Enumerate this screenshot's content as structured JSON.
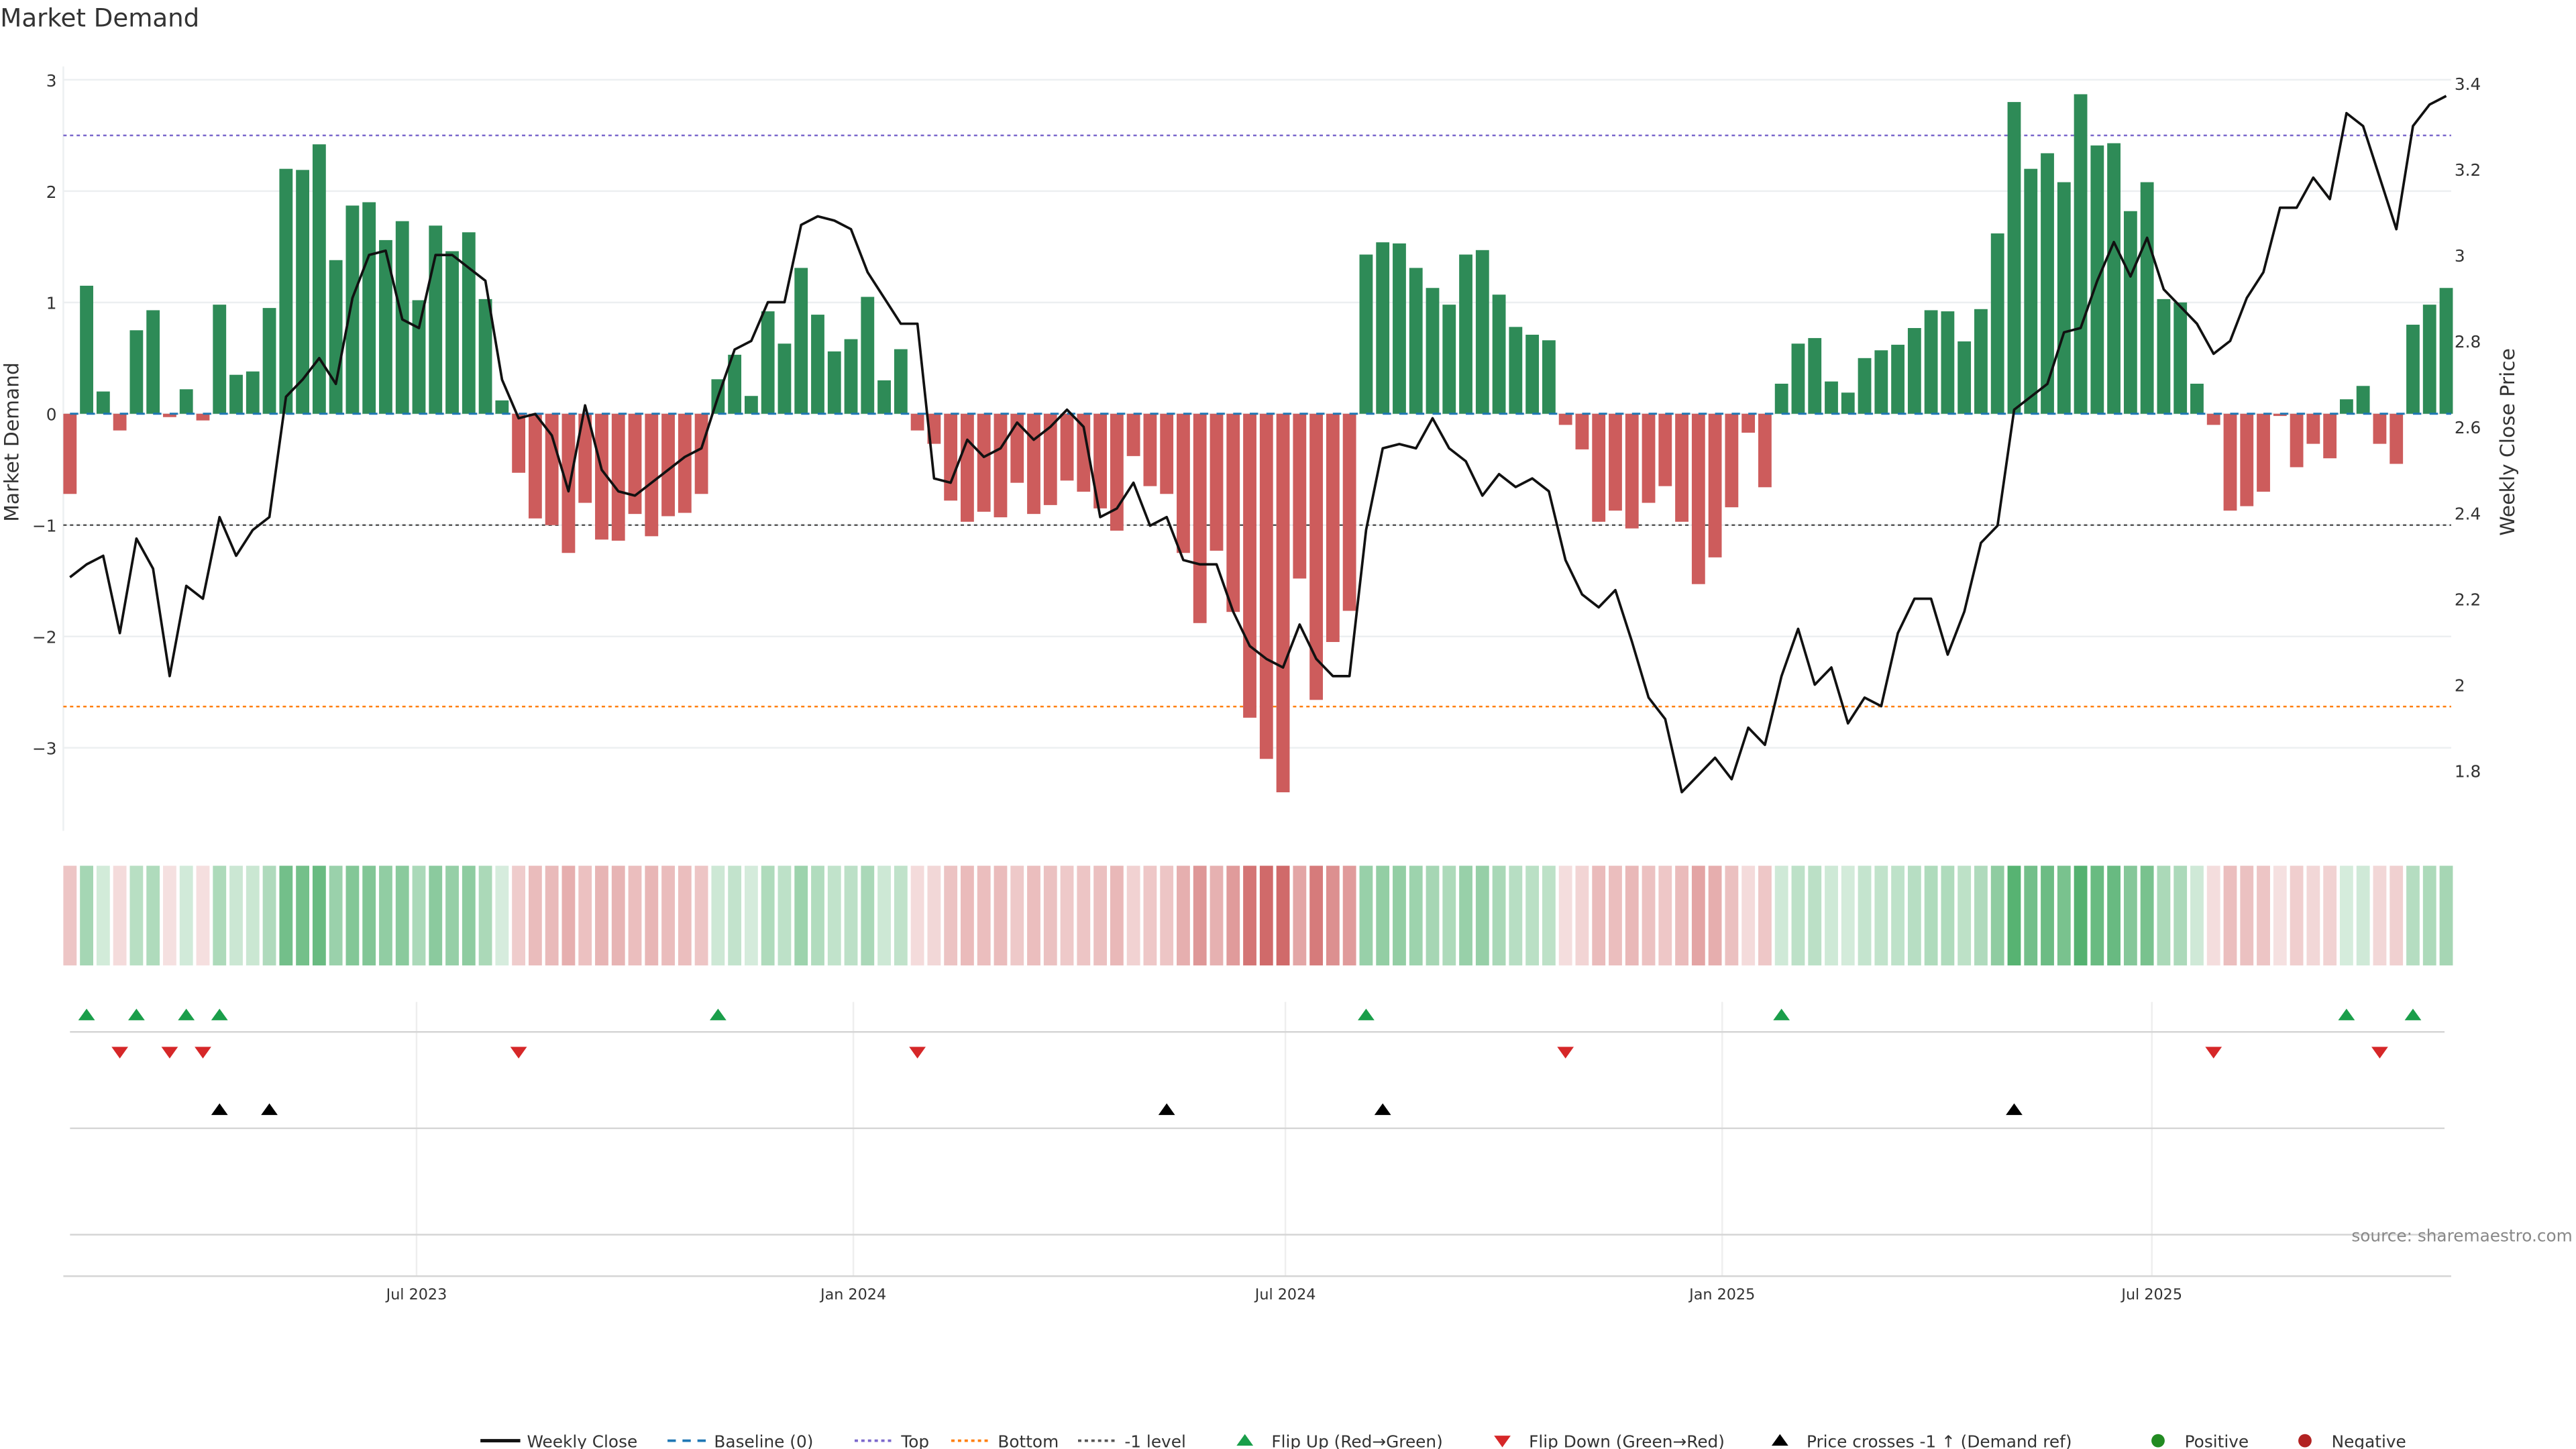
{
  "title": "Market Demand",
  "source": "source: sharemaestro.com",
  "colors": {
    "positive": "#2e8b57",
    "negative": "#cd5c5c",
    "line": "#111111",
    "baseline": "#1f77b4",
    "top": "#7b68cc",
    "bottom": "#ff7f0e",
    "minus1": "#555555",
    "flip_up": "#1a9e4a",
    "flip_down": "#d62728",
    "cross": "#000000"
  },
  "chart_data": {
    "type": "bar+line",
    "title": "Market Demand",
    "ylabel": "Market Demand",
    "y2label": "Weekly Close Price",
    "ylim": [
      -3.75,
      3.15
    ],
    "y2lim": [
      1.66,
      3.43
    ],
    "yticks": [
      "3",
      "2",
      "1",
      "0",
      "−1",
      "−2",
      "−3"
    ],
    "ytick_values": [
      3,
      2,
      1,
      0,
      -1,
      -2,
      -3
    ],
    "y2ticks": [
      "3.4",
      "3.2",
      "3",
      "2.8",
      "2.6",
      "2.4",
      "2.2",
      "2",
      "1.8"
    ],
    "y2tick_values": [
      3.4,
      3.2,
      3.0,
      2.8,
      2.6,
      2.4,
      2.2,
      2.0,
      1.8
    ],
    "xticks": [
      {
        "label": "Jul 2023",
        "date": "2023-07-01"
      },
      {
        "label": "Jan 2024",
        "date": "2024-01-01"
      },
      {
        "label": "Jul 2024",
        "date": "2024-07-01"
      },
      {
        "label": "Jan 2025",
        "date": "2025-01-01"
      },
      {
        "label": "Jul 2025",
        "date": "2025-07-01"
      }
    ],
    "start_date": "2023-02-05",
    "frequency": "weekly",
    "levels": {
      "top": 2.5,
      "bottom": -2.63,
      "minus1": -1,
      "baseline": 0
    },
    "demand": [
      -0.72,
      1.15,
      0.2,
      -0.15,
      0.75,
      0.93,
      -0.03,
      0.22,
      -0.06,
      0.98,
      0.35,
      0.38,
      0.95,
      2.2,
      2.19,
      2.42,
      1.38,
      1.87,
      1.9,
      1.56,
      1.73,
      1.02,
      1.69,
      1.46,
      1.63,
      1.03,
      0.12,
      -0.53,
      -0.94,
      -1.0,
      -1.25,
      -0.8,
      -1.13,
      -1.14,
      -0.9,
      -1.1,
      -0.92,
      -0.89,
      -0.72,
      0.31,
      0.53,
      0.16,
      0.92,
      0.63,
      1.31,
      0.89,
      0.56,
      0.67,
      1.05,
      0.3,
      0.58,
      -0.15,
      -0.27,
      -0.78,
      -0.97,
      -0.88,
      -0.93,
      -0.62,
      -0.9,
      -0.82,
      -0.6,
      -0.7,
      -0.85,
      -1.05,
      -0.38,
      -0.65,
      -0.72,
      -1.25,
      -1.88,
      -1.23,
      -1.78,
      -2.73,
      -3.1,
      -3.4,
      -1.48,
      -2.57,
      -2.05,
      -1.77,
      1.43,
      1.54,
      1.53,
      1.31,
      1.13,
      0.98,
      1.43,
      1.47,
      1.07,
      0.78,
      0.71,
      0.66,
      -0.1,
      -0.32,
      -0.97,
      -0.87,
      -1.03,
      -0.8,
      -0.65,
      -0.97,
      -1.53,
      -1.29,
      -0.84,
      -0.17,
      -0.66,
      0.27,
      0.63,
      0.68,
      0.29,
      0.19,
      0.5,
      0.57,
      0.62,
      0.77,
      0.93,
      0.92,
      0.65,
      0.94,
      1.62,
      2.8,
      2.2,
      2.34,
      2.08,
      2.87,
      2.41,
      2.43,
      1.82,
      2.08,
      1.03,
      1.0,
      0.27,
      -0.1,
      -0.87,
      -0.83,
      -0.7,
      -0.02,
      -0.48,
      -0.27,
      -0.4,
      0.13,
      0.25,
      -0.27,
      -0.45,
      0.8,
      0.98,
      1.13
    ],
    "close": [
      2.25,
      2.28,
      2.3,
      2.12,
      2.34,
      2.27,
      2.02,
      2.23,
      2.2,
      2.39,
      2.3,
      2.36,
      2.39,
      2.67,
      2.71,
      2.76,
      2.7,
      2.9,
      3.0,
      3.01,
      2.85,
      2.83,
      3.0,
      3.0,
      2.97,
      2.94,
      2.71,
      2.62,
      2.63,
      2.58,
      2.45,
      2.65,
      2.5,
      2.45,
      2.44,
      2.47,
      2.5,
      2.53,
      2.55,
      2.67,
      2.78,
      2.8,
      2.89,
      2.89,
      3.07,
      3.09,
      3.08,
      3.06,
      2.96,
      2.9,
      2.84,
      2.84,
      2.48,
      2.47,
      2.57,
      2.53,
      2.55,
      2.61,
      2.57,
      2.6,
      2.64,
      2.6,
      2.39,
      2.41,
      2.47,
      2.37,
      2.39,
      2.29,
      2.28,
      2.28,
      2.17,
      2.09,
      2.06,
      2.04,
      2.14,
      2.06,
      2.02,
      2.02,
      2.36,
      2.55,
      2.56,
      2.55,
      2.62,
      2.55,
      2.52,
      2.44,
      2.49,
      2.46,
      2.48,
      2.45,
      2.29,
      2.21,
      2.18,
      2.22,
      2.1,
      1.97,
      1.92,
      1.75,
      1.79,
      1.83,
      1.78,
      1.9,
      1.86,
      2.02,
      2.13,
      2.0,
      2.04,
      1.91,
      1.97,
      1.95,
      2.12,
      2.2,
      2.2,
      2.07,
      2.17,
      2.33,
      2.37,
      2.64,
      2.67,
      2.7,
      2.82,
      2.83,
      2.94,
      3.03,
      2.95,
      3.04,
      2.92,
      2.88,
      2.84,
      2.77,
      2.8,
      2.9,
      2.96,
      3.11,
      3.11,
      3.18,
      3.13,
      3.33,
      3.3,
      3.18,
      3.06,
      3.3,
      3.35,
      3.37
    ],
    "price_cross_up_weeks": [
      9,
      12,
      66,
      79,
      117
    ],
    "legend": [
      "Weekly Close",
      "Baseline (0)",
      "Top",
      "Bottom",
      "-1 level",
      "Flip Up (Red→Green)",
      "Flip Down (Green→Red)",
      "Price crosses -1 ↑ (Demand ref)",
      "Positive",
      "Negative"
    ],
    "legend_placement": "bottom-center"
  }
}
